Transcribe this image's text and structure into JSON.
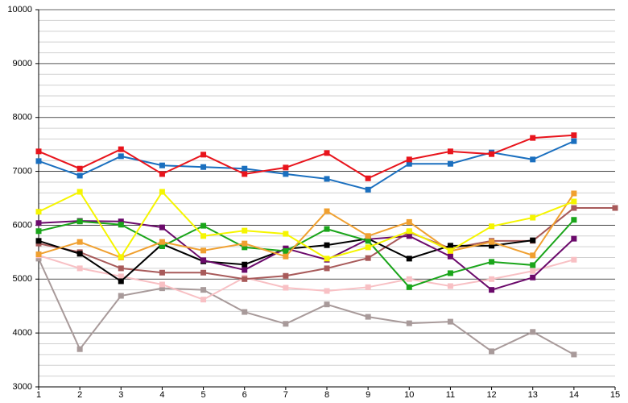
{
  "chart_data": {
    "type": "line",
    "x": [
      1,
      2,
      3,
      4,
      5,
      6,
      7,
      8,
      9,
      10,
      11,
      12,
      13,
      14,
      15
    ],
    "xlim": [
      1,
      15
    ],
    "xticks": [
      1,
      2,
      3,
      4,
      5,
      6,
      7,
      8,
      9,
      10,
      11,
      12,
      13,
      14,
      15
    ],
    "ylim": [
      3000,
      10000
    ],
    "yticks": [
      3000,
      4000,
      5000,
      6000,
      7000,
      8000,
      9000,
      10000
    ],
    "grid": true,
    "minor_grid_step": 200,
    "series": [
      {
        "color": "#a89a9a",
        "values": [
          5380,
          3700,
          4690,
          4830,
          4800,
          4390,
          4170,
          4530,
          4300,
          4180,
          4210,
          3660,
          4020,
          3600,
          null
        ]
      },
      {
        "color": "#f8c0c4",
        "values": [
          5440,
          5200,
          5050,
          4900,
          4620,
          5030,
          4840,
          4780,
          4850,
          5000,
          4870,
          5000,
          5150,
          5360,
          null
        ]
      },
      {
        "color": "#a85a5a",
        "values": [
          5660,
          5500,
          5200,
          5120,
          5120,
          5000,
          5060,
          5200,
          5390,
          5870,
          5570,
          5710,
          5710,
          6320,
          6320
        ]
      },
      {
        "color": "#000000",
        "values": [
          5710,
          5470,
          4960,
          5650,
          5330,
          5270,
          5560,
          5630,
          5750,
          5380,
          5620,
          5620,
          5720,
          null,
          null
        ]
      },
      {
        "color": "#6b0a6b",
        "values": [
          6040,
          6080,
          6070,
          5960,
          5350,
          5170,
          5570,
          5360,
          5740,
          5800,
          5420,
          4800,
          5030,
          5750,
          null
        ]
      },
      {
        "color": "#1aa51a",
        "values": [
          5890,
          6070,
          6010,
          5610,
          5990,
          5590,
          5520,
          5930,
          5710,
          4850,
          5110,
          5320,
          5260,
          6100,
          null
        ]
      },
      {
        "color": "#f0a030",
        "values": [
          5460,
          5690,
          5400,
          5690,
          5530,
          5660,
          5420,
          6260,
          5800,
          6060,
          5520,
          5690,
          5440,
          6590,
          null
        ]
      },
      {
        "color": "#f5f500",
        "values": [
          6250,
          6620,
          5410,
          6620,
          5800,
          5900,
          5840,
          5380,
          5590,
          5890,
          5530,
          5980,
          6140,
          6440,
          null
        ]
      },
      {
        "color": "#1a6fbf",
        "values": [
          7190,
          6920,
          7280,
          7110,
          7080,
          7050,
          6950,
          6860,
          6660,
          7140,
          7140,
          7350,
          7220,
          7560,
          null
        ]
      },
      {
        "color": "#e8141c",
        "values": [
          7370,
          7050,
          7410,
          6950,
          7310,
          6950,
          7070,
          7340,
          6870,
          7220,
          7370,
          7320,
          7620,
          7670,
          null
        ]
      }
    ]
  }
}
